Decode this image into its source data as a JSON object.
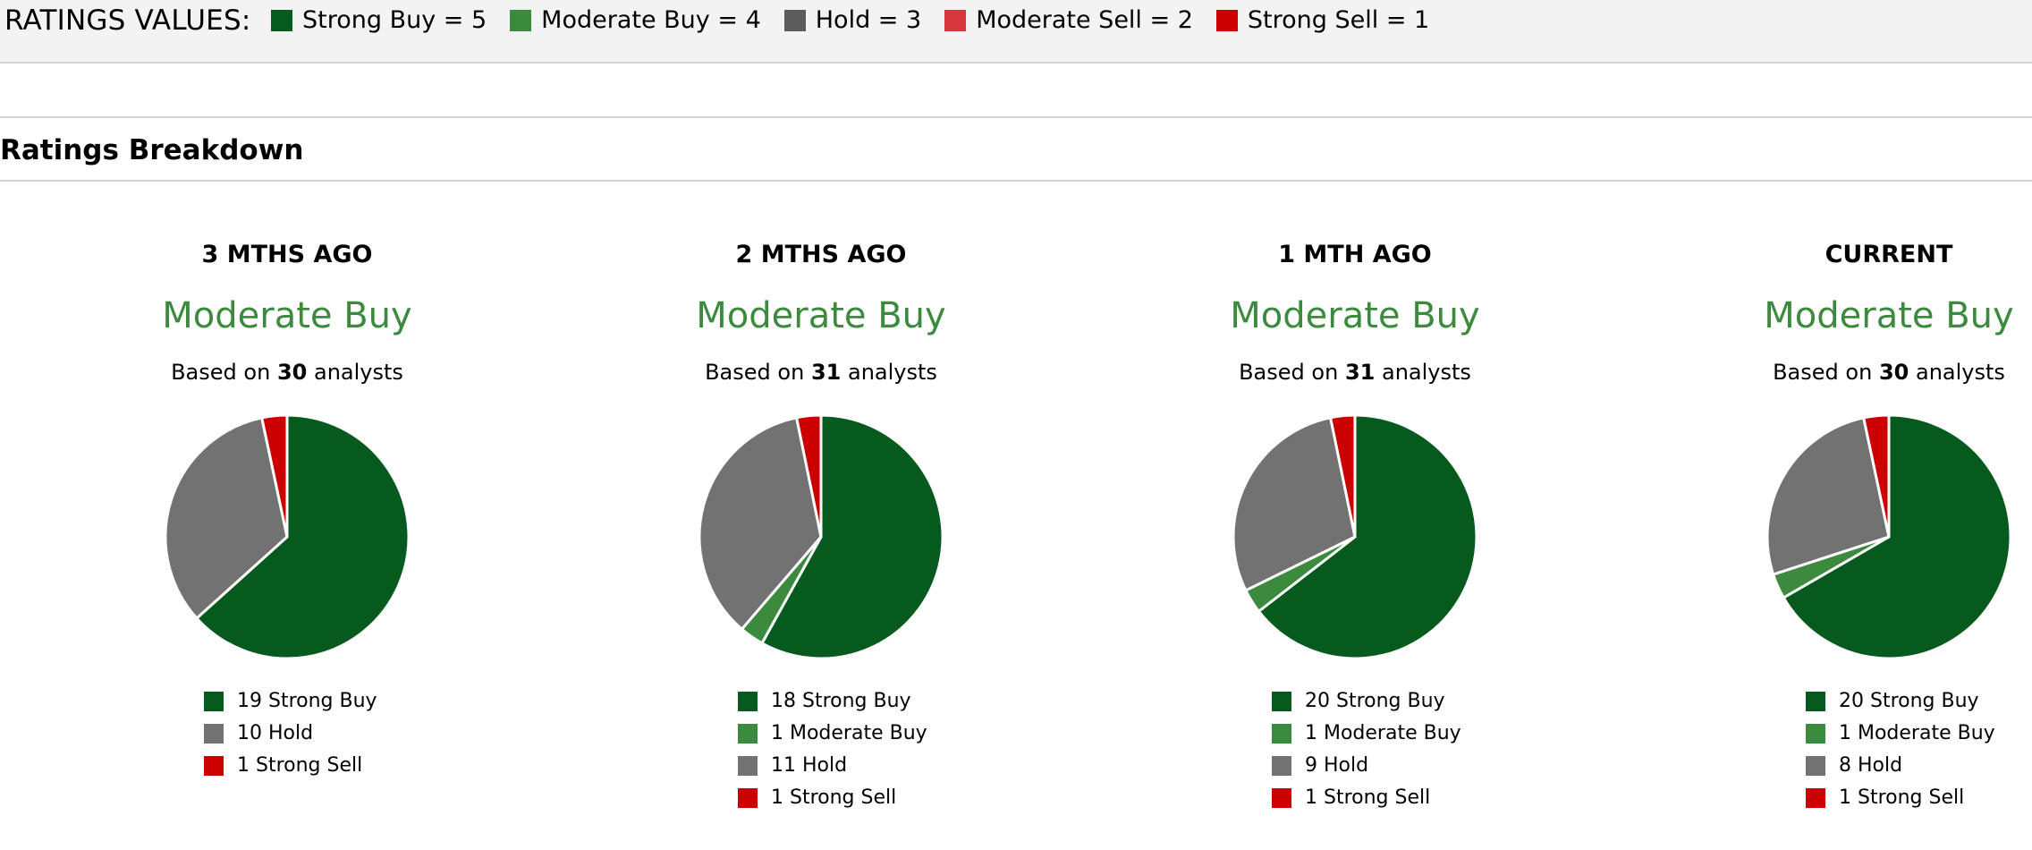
{
  "ratings_values": {
    "title": "RATINGS VALUES:",
    "items": [
      {
        "label": "Strong Buy = 5",
        "color": "#075a1e"
      },
      {
        "label": "Moderate Buy = 4",
        "color": "#3b8a3e"
      },
      {
        "label": "Hold = 3",
        "color": "#5c5c5c"
      },
      {
        "label": "Moderate Sell = 2",
        "color": "#d7383e"
      },
      {
        "label": "Strong Sell = 1",
        "color": "#cc0000"
      }
    ]
  },
  "section": {
    "title": "Ratings Breakdown"
  },
  "panels": [
    {
      "period": "3 MTHS AGO",
      "rating": "Moderate Buy",
      "based_prefix": "Based on",
      "analyst_count": "30",
      "based_suffix": "analysts",
      "legend": [
        "19 Strong Buy",
        "10 Hold",
        "1 Strong Sell"
      ]
    },
    {
      "period": "2 MTHS AGO",
      "rating": "Moderate Buy",
      "based_prefix": "Based on",
      "analyst_count": "31",
      "based_suffix": "analysts",
      "legend": [
        "18 Strong Buy",
        "1 Moderate Buy",
        "11 Hold",
        "1 Strong Sell"
      ]
    },
    {
      "period": "1 MTH AGO",
      "rating": "Moderate Buy",
      "based_prefix": "Based on",
      "analyst_count": "31",
      "based_suffix": "analysts",
      "legend": [
        "20 Strong Buy",
        "1 Moderate Buy",
        "9 Hold",
        "1 Strong Sell"
      ]
    },
    {
      "period": "CURRENT",
      "rating": "Moderate Buy",
      "based_prefix": "Based on",
      "analyst_count": "30",
      "based_suffix": "analysts",
      "legend": [
        "20 Strong Buy",
        "1 Moderate Buy",
        "8 Hold",
        "1 Strong Sell"
      ]
    }
  ],
  "chart_data": [
    {
      "type": "pie",
      "title": "3 MTHS AGO",
      "categories": [
        "Strong Buy",
        "Hold",
        "Strong Sell"
      ],
      "values": [
        19,
        10,
        1
      ],
      "colors": [
        "#075a1e",
        "#727272",
        "#cc0000"
      ]
    },
    {
      "type": "pie",
      "title": "2 MTHS AGO",
      "categories": [
        "Strong Buy",
        "Moderate Buy",
        "Hold",
        "Strong Sell"
      ],
      "values": [
        18,
        1,
        11,
        1
      ],
      "colors": [
        "#075a1e",
        "#3b8a3e",
        "#727272",
        "#cc0000"
      ]
    },
    {
      "type": "pie",
      "title": "1 MTH AGO",
      "categories": [
        "Strong Buy",
        "Moderate Buy",
        "Hold",
        "Strong Sell"
      ],
      "values": [
        20,
        1,
        9,
        1
      ],
      "colors": [
        "#075a1e",
        "#3b8a3e",
        "#727272",
        "#cc0000"
      ]
    },
    {
      "type": "pie",
      "title": "CURRENT",
      "categories": [
        "Strong Buy",
        "Moderate Buy",
        "Hold",
        "Strong Sell"
      ],
      "values": [
        20,
        1,
        8,
        1
      ],
      "colors": [
        "#075a1e",
        "#3b8a3e",
        "#727272",
        "#cc0000"
      ]
    }
  ]
}
